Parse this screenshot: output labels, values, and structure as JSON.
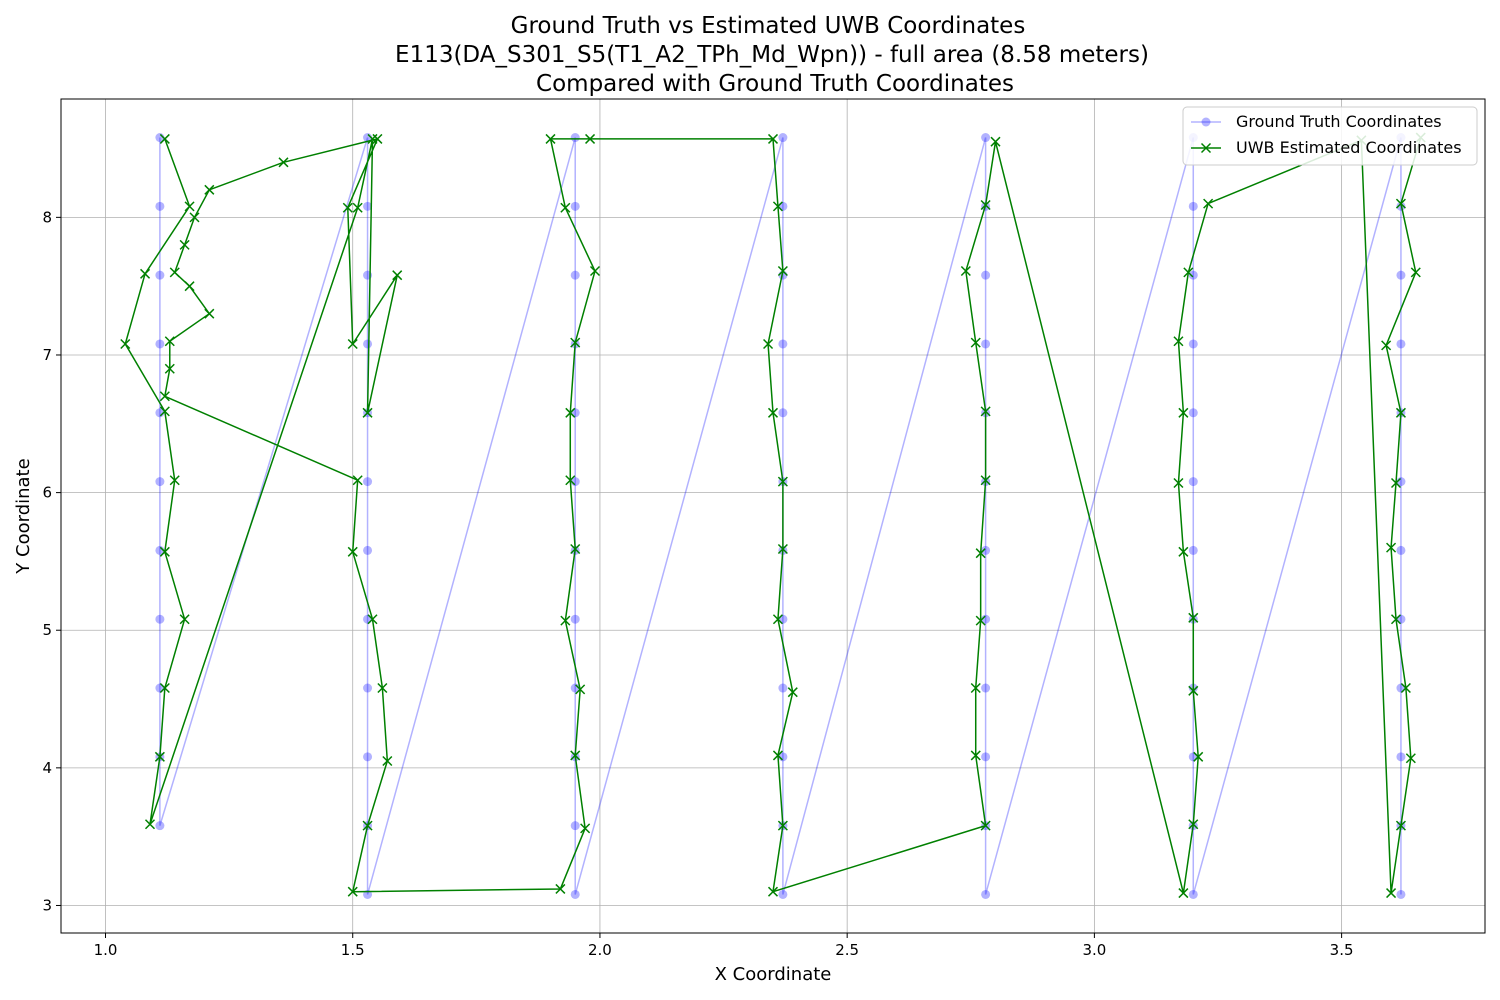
{
  "chart_data": {
    "type": "line",
    "title": [
      "Ground Truth vs Estimated UWB Coordinates",
      "E113(DA_S301_S5(T1_A2_TPh_Md_Wpn)) - full area (8.58 meters)",
      "Compared with Ground Truth Coordinates"
    ],
    "xlabel": "X Coordinate",
    "ylabel": "Y Coordinate",
    "xlim": [
      0.91,
      3.79
    ],
    "ylim": [
      2.8,
      8.86
    ],
    "xticks": [
      1.0,
      1.5,
      2.0,
      2.5,
      3.0,
      3.5
    ],
    "xtick_labels": [
      "1.0",
      "1.5",
      "2.0",
      "2.5",
      "3.0",
      "3.5"
    ],
    "yticks": [
      3,
      4,
      5,
      6,
      7,
      8
    ],
    "ytick_labels": [
      "3",
      "4",
      "5",
      "6",
      "7",
      "8"
    ],
    "grid": true,
    "legend": {
      "position": "top-right",
      "entries": [
        "Ground Truth Coordinates",
        "UWB Estimated Coordinates"
      ]
    },
    "colors": {
      "ground_truth": "#0000ff",
      "uwb": "#008000",
      "grid": "#b0b0b0"
    },
    "series": [
      {
        "name": "Ground Truth Coordinates",
        "x": [
          1.11,
          1.11,
          1.11,
          1.11,
          1.11,
          1.11,
          1.11,
          1.11,
          1.11,
          1.11,
          1.11,
          1.53,
          1.53,
          1.53,
          1.53,
          1.53,
          1.53,
          1.53,
          1.53,
          1.53,
          1.53,
          1.53,
          1.53,
          1.95,
          1.95,
          1.95,
          1.95,
          1.95,
          1.95,
          1.95,
          1.95,
          1.95,
          1.95,
          1.95,
          1.95,
          2.37,
          2.37,
          2.37,
          2.37,
          2.37,
          2.37,
          2.37,
          2.37,
          2.37,
          2.37,
          2.37,
          2.37,
          2.78,
          2.78,
          2.78,
          2.78,
          2.78,
          2.78,
          2.78,
          2.78,
          2.78,
          2.78,
          2.78,
          2.78,
          3.2,
          3.2,
          3.2,
          3.2,
          3.2,
          3.2,
          3.2,
          3.2,
          3.2,
          3.2,
          3.2,
          3.2,
          3.62,
          3.62,
          3.62,
          3.62,
          3.62,
          3.62,
          3.62,
          3.62,
          3.62,
          3.62,
          3.62,
          3.62
        ],
        "y": [
          8.58,
          8.08,
          7.58,
          7.08,
          6.58,
          6.08,
          5.58,
          5.08,
          4.58,
          4.08,
          3.58,
          8.58,
          8.08,
          7.58,
          7.08,
          6.58,
          6.08,
          5.58,
          5.08,
          4.58,
          4.08,
          3.58,
          3.08,
          8.58,
          8.08,
          7.58,
          7.08,
          6.58,
          6.08,
          5.58,
          5.08,
          4.58,
          4.08,
          3.58,
          3.08,
          8.58,
          8.08,
          7.58,
          7.08,
          6.58,
          6.08,
          5.58,
          5.08,
          4.58,
          4.08,
          3.58,
          3.08,
          8.58,
          8.08,
          7.58,
          7.08,
          6.58,
          6.08,
          5.58,
          5.08,
          4.58,
          4.08,
          3.58,
          3.08,
          8.58,
          8.08,
          7.58,
          7.08,
          6.58,
          6.08,
          5.58,
          5.08,
          4.58,
          4.08,
          3.58,
          3.08,
          8.58,
          8.08,
          7.58,
          7.08,
          6.58,
          6.08,
          5.58,
          5.08,
          4.58,
          4.08,
          3.58,
          3.08
        ]
      },
      {
        "name": "UWB Estimated Coordinates",
        "x": [
          1.12,
          1.17,
          1.08,
          1.04,
          1.12,
          1.14,
          1.12,
          1.16,
          1.12,
          1.11,
          1.09,
          1.51,
          1.54,
          1.53,
          1.59,
          1.5,
          1.49,
          1.55,
          1.36,
          1.21,
          1.18,
          1.16,
          1.14,
          1.17,
          1.21,
          1.13,
          1.13,
          1.12,
          1.51,
          1.5,
          1.54,
          1.56,
          1.57,
          1.53,
          1.5,
          1.92,
          1.97,
          1.95,
          1.96,
          1.93,
          1.95,
          1.94,
          1.94,
          1.95,
          1.99,
          1.93,
          1.9,
          1.98,
          2.35,
          2.36,
          2.37,
          2.34,
          2.35,
          2.37,
          2.37,
          2.36,
          2.39,
          2.36,
          2.37,
          2.35,
          2.78,
          2.76,
          2.76,
          2.77,
          2.77,
          2.78,
          2.78,
          2.76,
          2.74,
          2.78,
          2.8,
          3.18,
          3.2,
          3.21,
          3.2,
          3.2,
          3.18,
          3.17,
          3.18,
          3.17,
          3.19,
          3.23,
          3.54,
          3.6,
          3.62,
          3.64,
          3.63,
          3.61,
          3.6,
          3.61,
          3.62,
          3.59,
          3.65,
          3.62,
          3.66
        ],
        "y": [
          8.57,
          8.08,
          7.59,
          7.08,
          6.59,
          6.09,
          5.57,
          5.08,
          4.58,
          4.08,
          3.59,
          8.07,
          8.57,
          6.58,
          7.58,
          7.08,
          8.07,
          8.57,
          8.4,
          8.2,
          8.0,
          7.8,
          7.6,
          7.5,
          7.3,
          7.1,
          6.9,
          6.7,
          6.09,
          5.57,
          5.08,
          4.58,
          4.05,
          3.58,
          3.1,
          3.12,
          3.56,
          4.09,
          4.57,
          5.07,
          5.59,
          6.09,
          6.58,
          7.09,
          7.61,
          8.07,
          8.57,
          8.57,
          8.57,
          8.08,
          7.61,
          7.08,
          6.58,
          6.08,
          5.59,
          5.08,
          4.55,
          4.09,
          3.58,
          3.1,
          3.58,
          4.09,
          4.58,
          5.07,
          5.56,
          6.09,
          6.59,
          7.09,
          7.61,
          8.09,
          8.55,
          3.09,
          3.59,
          4.08,
          4.56,
          5.09,
          5.57,
          6.07,
          6.58,
          7.1,
          7.6,
          8.1,
          8.56,
          3.09,
          3.58,
          4.07,
          4.58,
          5.08,
          5.6,
          6.07,
          6.58,
          7.07,
          7.6,
          8.1,
          8.58
        ]
      }
    ]
  }
}
